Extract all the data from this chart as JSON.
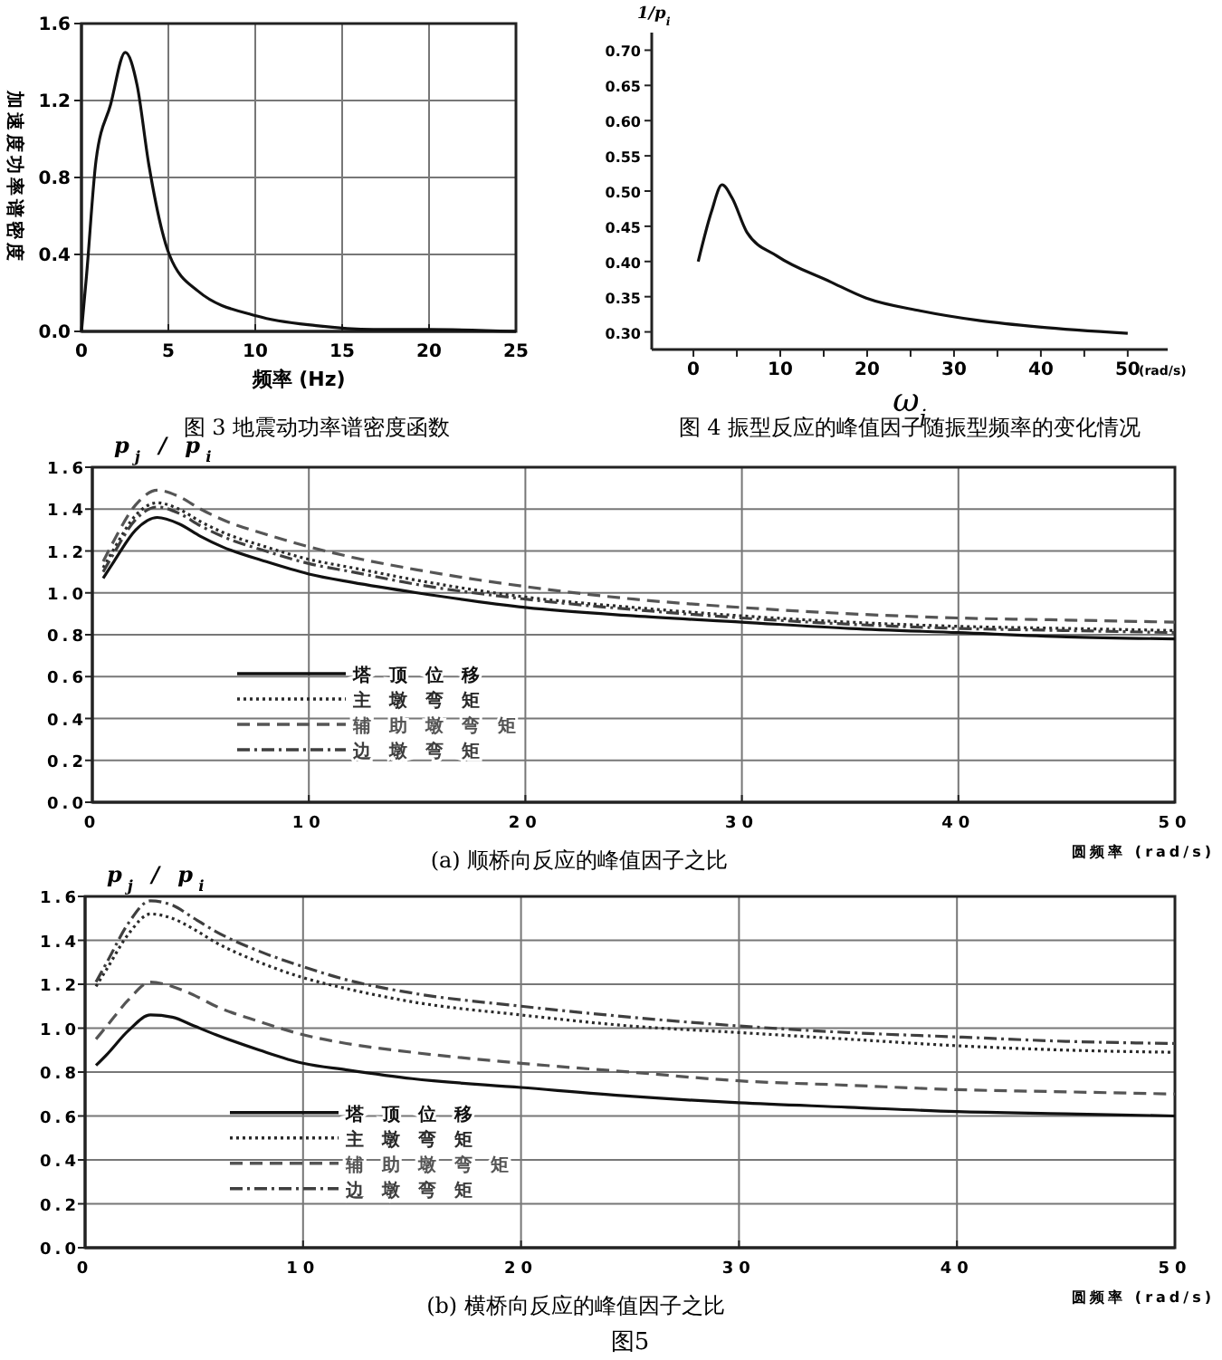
{
  "chart_data": [
    {
      "type": "line",
      "title": "图 3  地震动功率谱密度函数",
      "xlabel": "频率 (Hz)",
      "ylabel": "加速度功率谱密度",
      "xlim": [
        0,
        25
      ],
      "ylim": [
        0,
        1.6
      ],
      "xticks": [
        0,
        5,
        10,
        15,
        20,
        25
      ],
      "yticks": [
        {
          "value": 0,
          "label": "0.0"
        },
        0.4,
        0.8,
        1.2,
        1.6
      ],
      "grid": true,
      "series": [
        {
          "color": "#111111",
          "x": [
            0,
            0.3,
            0.84,
            1.68,
            2.52,
            3.2,
            3.87,
            5.05,
            6.7,
            10.1,
            13.5,
            16.8,
            20,
            25
          ],
          "values": [
            0,
            0.3,
            0.89,
            1.18,
            1.45,
            1.28,
            0.87,
            0.4,
            0.21,
            0.08,
            0.03,
            0.01,
            0.01,
            0
          ]
        }
      ]
    },
    {
      "type": "line",
      "title": "图 4  振型反应的峰值因子随振型频率的变化情况",
      "xlabel": "ω$_{i}$",
      "ylabel": "1/p$_{i}$",
      "annotations": [
        "(rad/s)"
      ],
      "xlim": [
        -4.8,
        54.6
      ],
      "ylim": [
        0.275,
        0.725
      ],
      "xticks": [
        0,
        {
          "value": 5,
          "label": null
        },
        10,
        {
          "value": 15,
          "label": null
        },
        20,
        {
          "value": 25,
          "label": null
        },
        30,
        {
          "value": 35,
          "label": null
        },
        40,
        {
          "value": 45,
          "label": null
        },
        50
      ],
      "yticks": [
        {
          "value": 0.3,
          "label": "0.30"
        },
        0.35,
        {
          "value": 0.4,
          "label": "0.40"
        },
        0.45,
        {
          "value": 0.5,
          "label": "0.50"
        },
        0.55,
        {
          "value": 0.6,
          "label": "0.60"
        },
        0.65,
        {
          "value": 0.7,
          "label": "0.70"
        }
      ],
      "series": [
        {
          "color": "#111111",
          "x": [
            0.55,
            2.06,
            3.3,
            4.46,
            6.18,
            9.6,
            15.8,
            19.9,
            26.1,
            33,
            39.8,
            50
          ],
          "values": [
            0.4,
            0.47,
            0.509,
            0.49,
            0.441,
            0.408,
            0.371,
            0.348,
            0.33,
            0.316,
            0.307,
            0.298
          ]
        }
      ]
    },
    {
      "type": "line",
      "title": "(a)  顺桥向反应的峰值因子之比",
      "xlabel": "圆频率 (rad/s)",
      "ylabel": "p$_{j}$ / p$_{i}$",
      "xlim": [
        0,
        50
      ],
      "ylim": [
        0,
        1.6
      ],
      "xticks": [
        0,
        10,
        20,
        30,
        40,
        50
      ],
      "yticks": [
        {
          "value": 0,
          "label": "0.0"
        },
        0.2,
        0.4,
        0.6,
        0.8,
        {
          "value": 1,
          "label": "1.0"
        },
        1.2,
        1.4,
        1.6
      ],
      "grid": true,
      "legend": "left",
      "x": [
        0.5,
        1,
        2,
        3,
        4,
        5,
        6,
        8,
        10,
        12,
        15,
        20,
        25,
        30,
        35,
        40,
        45,
        50
      ],
      "series": [
        {
          "name": "塔顶位移",
          "color": "#111111",
          "line_style": "solid",
          "values": [
            1.07,
            1.15,
            1.3,
            1.36,
            1.33,
            1.27,
            1.22,
            1.15,
            1.09,
            1.05,
            1.0,
            0.93,
            0.89,
            0.86,
            0.83,
            0.81,
            0.79,
            0.78
          ]
        },
        {
          "name": "主墩弯矩",
          "color": "#2a2a2a",
          "line_style": "dotted",
          "values": [
            1.12,
            1.21,
            1.37,
            1.43,
            1.4,
            1.34,
            1.29,
            1.22,
            1.16,
            1.12,
            1.06,
            0.98,
            0.93,
            0.89,
            0.86,
            0.84,
            0.83,
            0.82
          ]
        },
        {
          "name": "辅助墩弯矩",
          "color": "#555555",
          "line_style": "dashed",
          "values": [
            1.15,
            1.25,
            1.42,
            1.49,
            1.46,
            1.4,
            1.35,
            1.28,
            1.22,
            1.17,
            1.11,
            1.03,
            0.97,
            0.93,
            0.9,
            0.88,
            0.87,
            0.86
          ]
        },
        {
          "name": "边墩弯矩",
          "color": "#3f3f3f",
          "line_style": "dashdot",
          "values": [
            1.1,
            1.19,
            1.35,
            1.41,
            1.38,
            1.32,
            1.27,
            1.2,
            1.14,
            1.1,
            1.04,
            0.97,
            0.92,
            0.88,
            0.85,
            0.83,
            0.82,
            0.81
          ]
        }
      ]
    },
    {
      "type": "line",
      "title": "(b)  横桥向反应的峰值因子之比",
      "xlabel": "圆频率 (rad/s)",
      "ylabel": "p$_{j}$ / p$_{i}$",
      "annotations": [
        "图5"
      ],
      "xlim": [
        0,
        50
      ],
      "ylim": [
        0,
        1.6
      ],
      "xticks": [
        0,
        10,
        20,
        30,
        40,
        50
      ],
      "yticks": [
        {
          "value": 0,
          "label": "0.0"
        },
        0.2,
        0.4,
        0.6,
        0.8,
        {
          "value": 1,
          "label": "1.0"
        },
        1.2,
        1.4,
        1.6
      ],
      "grid": true,
      "legend": "left",
      "x": [
        0.5,
        1,
        2,
        3,
        4,
        5,
        6,
        8,
        10,
        12,
        15,
        20,
        25,
        30,
        35,
        40,
        45,
        50
      ],
      "series": [
        {
          "name": "塔顶位移",
          "color": "#111111",
          "line_style": "solid",
          "values": [
            0.83,
            0.88,
            0.99,
            1.06,
            1.05,
            1.01,
            0.97,
            0.9,
            0.84,
            0.81,
            0.77,
            0.73,
            0.69,
            0.66,
            0.64,
            0.62,
            0.61,
            0.6
          ]
        },
        {
          "name": "主墩弯矩",
          "color": "#2a2a2a",
          "line_style": "dotted",
          "values": [
            1.19,
            1.27,
            1.43,
            1.52,
            1.5,
            1.45,
            1.39,
            1.3,
            1.23,
            1.18,
            1.12,
            1.06,
            1.01,
            0.98,
            0.95,
            0.92,
            0.9,
            0.89
          ]
        },
        {
          "name": "辅助墩弯矩",
          "color": "#555555",
          "line_style": "dashed",
          "values": [
            0.95,
            1.01,
            1.13,
            1.21,
            1.19,
            1.15,
            1.1,
            1.03,
            0.97,
            0.93,
            0.89,
            0.84,
            0.8,
            0.76,
            0.74,
            0.72,
            0.71,
            0.7
          ]
        },
        {
          "name": "边墩弯矩",
          "color": "#3f3f3f",
          "line_style": "dashdot",
          "values": [
            1.21,
            1.3,
            1.48,
            1.58,
            1.56,
            1.5,
            1.44,
            1.35,
            1.28,
            1.22,
            1.16,
            1.1,
            1.05,
            1.01,
            0.98,
            0.96,
            0.94,
            0.93
          ]
        }
      ]
    }
  ]
}
